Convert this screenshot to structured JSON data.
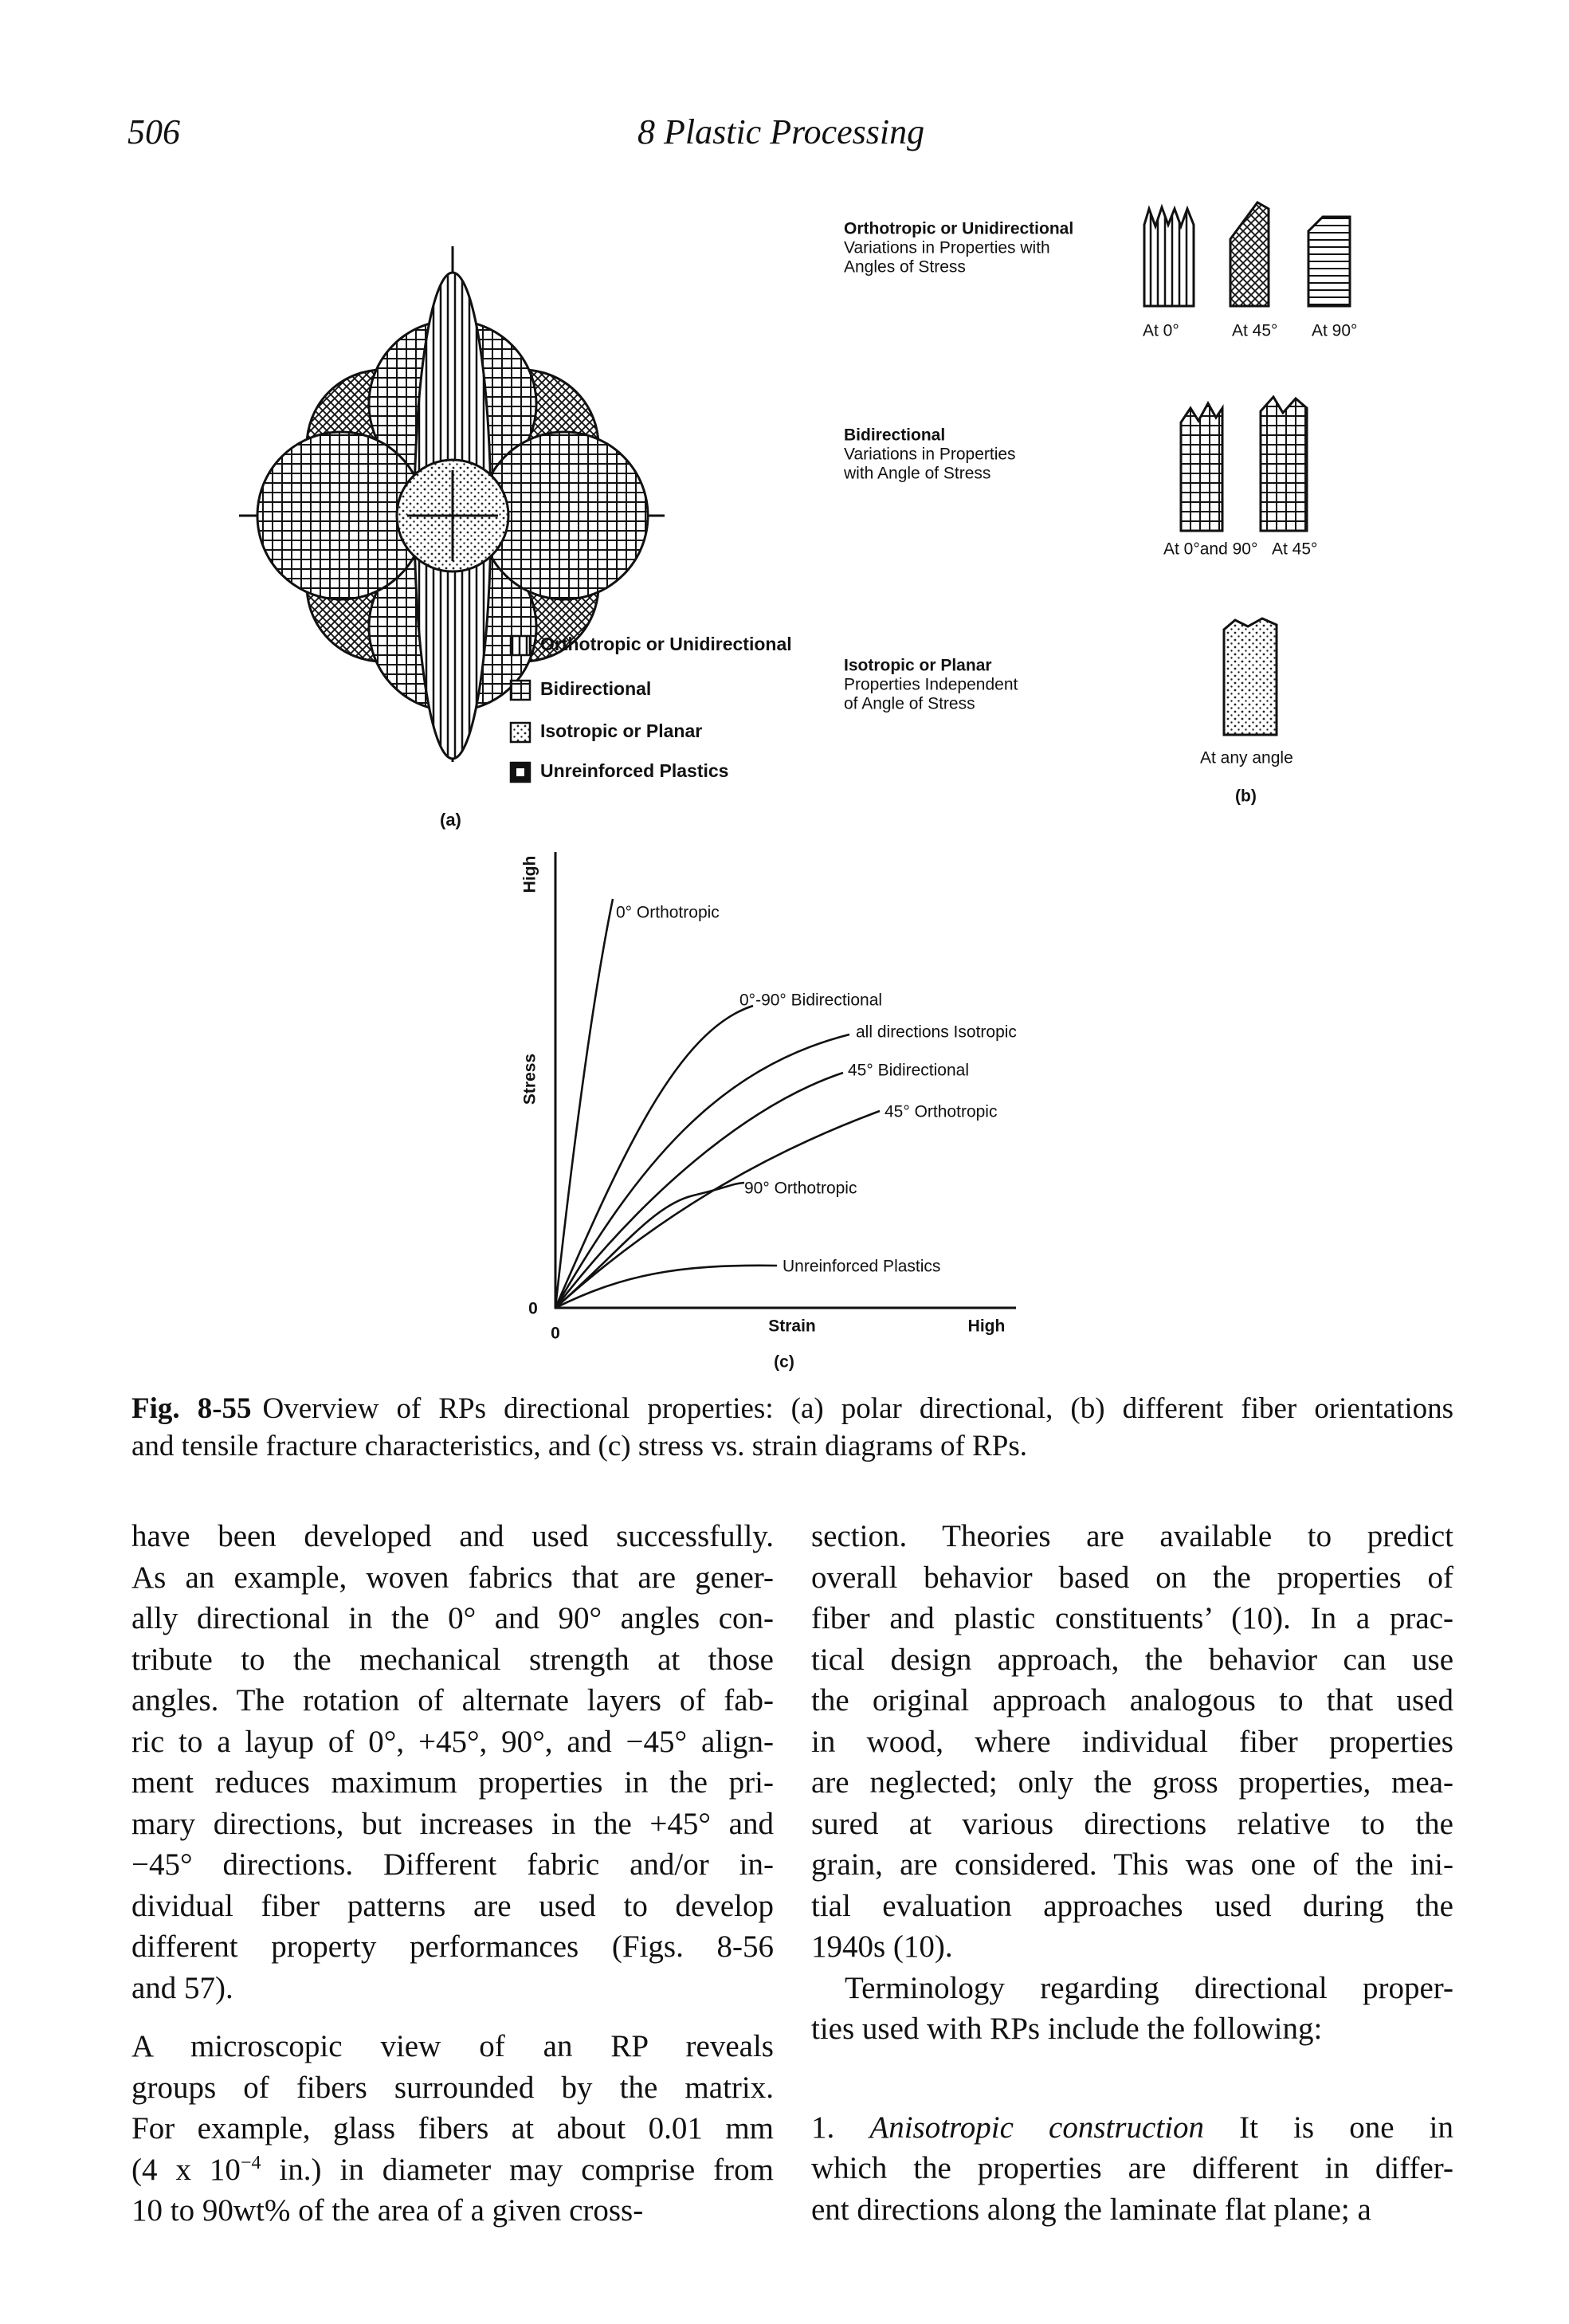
{
  "header": {
    "page_number": "506",
    "running_title": "8 Plastic Processing"
  },
  "figure": {
    "part_a": {
      "label": "(a)",
      "legend": [
        "Orthotropic or Unidirectional",
        "Bidirectional",
        "Isotropic or Planar",
        "Unreinforced Plastics"
      ]
    },
    "part_b": {
      "label": "(b)",
      "rows": [
        {
          "title": "Orthotropic or Unidirectional",
          "description": [
            "Variations in Properties with",
            "Angles of Stress"
          ],
          "angles": [
            "At 0°",
            "At 45°",
            "At 90°"
          ]
        },
        {
          "title": "Bidirectional",
          "description": [
            "Variations in Properties",
            "with Angle of Stress"
          ],
          "angles": [
            "At 0°and 90°",
            "At 45°"
          ]
        },
        {
          "title": "Isotropic or Planar",
          "description": [
            "Properties Independent",
            "of Angle of Stress"
          ],
          "angles": [
            "At any angle"
          ]
        }
      ]
    },
    "part_c": {
      "label": "(c)",
      "y_axis_label": "Stress",
      "y_axis_high": "High",
      "y_origin": "0",
      "x_axis_label": "Strain",
      "x_axis_high": "High",
      "x_origin": "0",
      "curves": [
        "0° Orthotropic",
        "0°-90° Bidirectional",
        "all directions Isotropic",
        "45° Bidirectional",
        "45° Orthotropic",
        "90° Orthotropic",
        "Unreinforced Plastics"
      ]
    }
  },
  "caption": {
    "label": "Fig. 8-55",
    "lines": [
      "Overview of RPs directional properties: (a) polar directional, (b) different fiber orientations",
      "and tensile fracture characteristics, and (c) stress vs. strain diagrams of RPs."
    ]
  },
  "body": {
    "left": [
      {
        "lines": [
          "have been developed and used successfully.",
          "As an example, woven fabrics that are gener-",
          "ally directional in the 0° and 90° angles con-",
          "tribute to the mechanical strength at those",
          "angles. The rotation of alternate layers of fab-",
          "ric to a layup of 0°, +45°, 90°, and −45° align-",
          "ment reduces maximum properties in the pri-",
          "mary directions, but increases in the +45° and",
          "−45° directions. Different fabric and/or in-",
          "dividual fiber patterns are used to develop",
          "different property performances (Figs. 8-56",
          "and 57)."
        ]
      },
      {
        "lines": [
          "A microscopic view of an RP reveals",
          "groups of fibers surrounded by the matrix.",
          "For example, glass fibers at about 0.01 mm",
          [
            "(4 x 10",
            "−4",
            " in.) in diameter may comprise from"
          ],
          "10 to 90wt% of the area of a given cross-"
        ]
      }
    ],
    "right": [
      {
        "lines": [
          "section. Theories are available to predict",
          "overall behavior based on the properties of",
          "fiber and plastic constituents’ (10). In a prac-",
          "tical design approach, the behavior can use",
          "the original approach analogous to that used",
          "in wood, where individual fiber properties",
          "are neglected; only the gross properties, mea-",
          "sured at various directions relative to the",
          "grain, are considered. This was one of the ini-",
          "tial evaluation approaches used during the",
          "1940s (10)."
        ]
      },
      {
        "lines": [
          "Terminology regarding directional proper-",
          "ties used with RPs include the following:"
        ]
      },
      {
        "number": "1.",
        "term": "Anisotropic construction",
        "lines": [
          "It is one in",
          "which the properties are different in differ-",
          "ent directions along the laminate flat plane; a"
        ]
      }
    ]
  }
}
